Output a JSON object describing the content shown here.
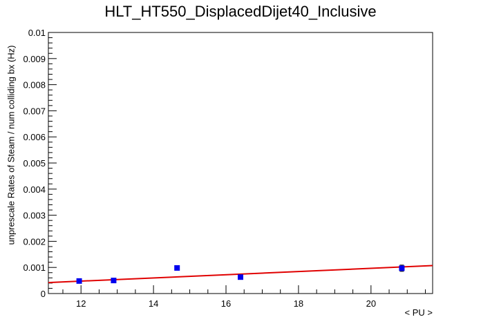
{
  "chart_data": {
    "type": "scatter",
    "title": "HLT_HT550_DisplacedDijet40_Inclusive",
    "xlabel": "< PU >",
    "ylabel": "unprescale Rates of Steam / num colliding bx (Hz)",
    "xlim": [
      11.1,
      21.7
    ],
    "ylim": [
      0,
      0.01
    ],
    "x_ticks": [
      12,
      14,
      16,
      18,
      20
    ],
    "y_ticks": [
      0,
      0.001,
      0.002,
      0.003,
      0.004,
      0.005,
      0.006,
      0.007,
      0.008,
      0.009,
      0.01
    ],
    "y_tick_labels": [
      "0",
      "0.001",
      "0.002",
      "0.003",
      "0.004",
      "0.005",
      "0.006",
      "0.007",
      "0.008",
      "0.009",
      "0.01"
    ],
    "series": [
      {
        "x": [
          11.95,
          12.9,
          14.65,
          16.4,
          20.85
        ],
        "y": [
          0.00048,
          0.0005,
          0.00098,
          0.00063,
          0.00097
        ],
        "yerr": [
          5e-05,
          5e-05,
          6e-05,
          5e-05,
          0.00012
        ],
        "color": "#0000ee"
      }
    ],
    "fit": {
      "x": [
        11.1,
        21.7
      ],
      "y": [
        0.00042,
        0.00107
      ],
      "color": "#e00000"
    },
    "grid": false
  }
}
